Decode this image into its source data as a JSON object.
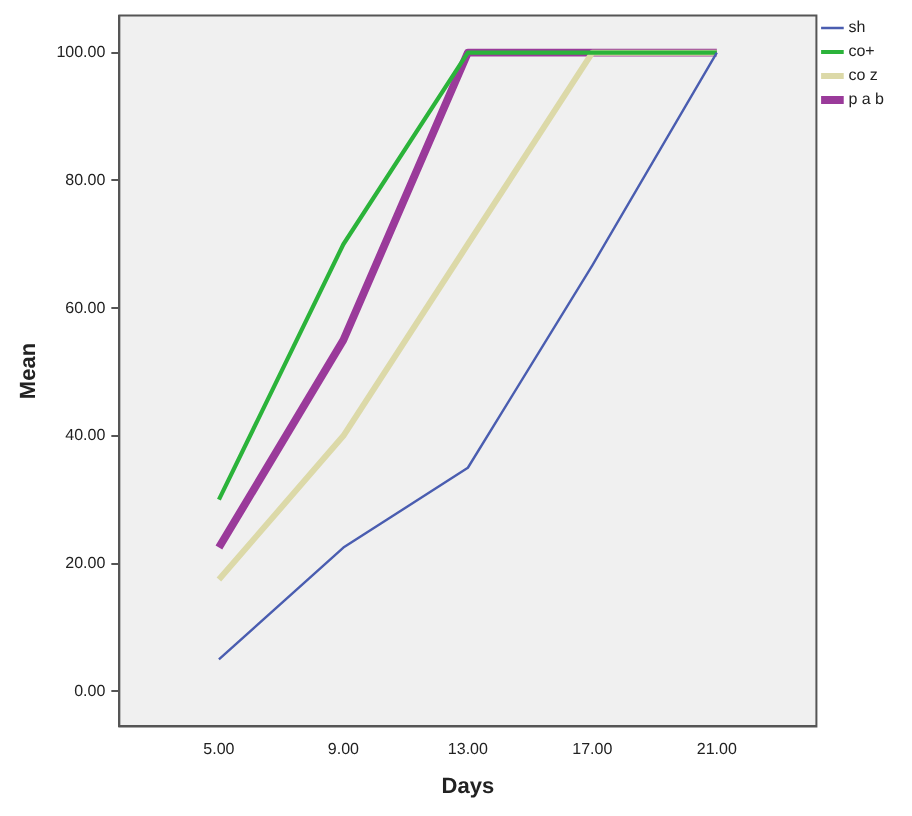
{
  "chart_data": {
    "type": "line",
    "xlabel": "Days",
    "ylabel": "Mean",
    "x": [
      5,
      9,
      13,
      17,
      21
    ],
    "series": [
      {
        "name": "sh",
        "color": "#4a5db0",
        "values": [
          5,
          22.5,
          35,
          66.7,
          100
        ]
      },
      {
        "name": "co+",
        "color": "#2bb33a",
        "values": [
          30,
          70,
          100,
          100,
          100
        ]
      },
      {
        "name": "co z",
        "color": "#dcd9a8",
        "values": [
          17.5,
          40,
          70,
          100,
          100
        ]
      },
      {
        "name": "p a b",
        "color": "#9a3a9a",
        "values": [
          22.5,
          55,
          100,
          100,
          100
        ]
      }
    ],
    "xlim": [
      1.8,
      24.2
    ],
    "xticks": [
      {
        "value": 5,
        "label": "5.00"
      },
      {
        "value": 9,
        "label": "9.00"
      },
      {
        "value": 13,
        "label": "13.00"
      },
      {
        "value": 17,
        "label": "17.00"
      },
      {
        "value": 21,
        "label": "21.00"
      }
    ],
    "ylim": [
      -5.5,
      105.8
    ],
    "yticks": [
      {
        "value": 0,
        "label": "0.00"
      },
      {
        "value": 20,
        "label": "20.00"
      },
      {
        "value": 40,
        "label": "40.00"
      },
      {
        "value": 60,
        "label": "60.00"
      },
      {
        "value": 80,
        "label": "80.00"
      },
      {
        "value": 100,
        "label": "100.00"
      }
    ],
    "grid": false,
    "legend": "top right",
    "marker": "none",
    "line_style": "solid"
  }
}
